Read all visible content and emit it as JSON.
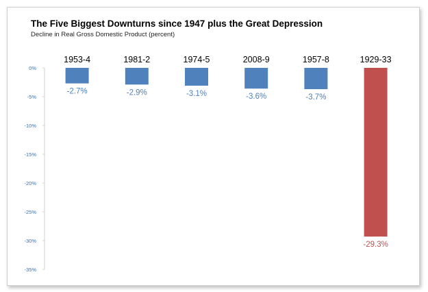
{
  "chart_data": {
    "type": "bar",
    "title": "The Five Biggest Downturns since 1947 plus the Great Depression",
    "subtitle": "Decline in Real Gross Domestic Product (percent)",
    "categories": [
      "1953-4",
      "1981-2",
      "1974-5",
      "2008-9",
      "1957-8",
      "1929-33"
    ],
    "values": [
      -2.7,
      -2.9,
      -3.1,
      -3.6,
      -3.7,
      -29.3
    ],
    "data_labels": [
      "-2.7%",
      "-2.9%",
      "-3.1%",
      "-3.6%",
      "-3.7%",
      "-29.3%"
    ],
    "colors": [
      "#4f81bd",
      "#4f81bd",
      "#4f81bd",
      "#4f81bd",
      "#4f81bd",
      "#c0504d"
    ],
    "label_colors": [
      "#4f81bd",
      "#4f81bd",
      "#4f81bd",
      "#4f81bd",
      "#4f81bd",
      "#c0504d"
    ],
    "yticks": [
      0,
      -5,
      -10,
      -15,
      -20,
      -25,
      -30,
      -35
    ],
    "ytick_labels": [
      "0%",
      "-5%",
      "-10%",
      "-15%",
      "-20%",
      "-25%",
      "-30%",
      "-35%"
    ],
    "ylim": [
      -35,
      0
    ],
    "xlabel": "",
    "ylabel": "",
    "grid": false,
    "category_axis_position": "top"
  }
}
